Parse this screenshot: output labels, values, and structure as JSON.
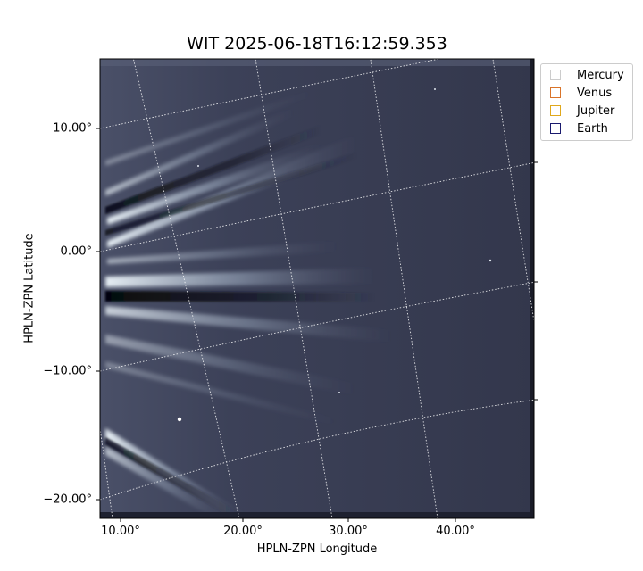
{
  "title": "WIT 2025-06-18T16:12:59.353",
  "xlabel": "HPLN-ZPN Longitude",
  "ylabel": "HPLN-ZPN Latitude",
  "yticks": [
    "10.00°",
    "0.00°",
    "−10.00°",
    "−20.00°"
  ],
  "xticks": [
    "10.00°",
    "20.00°",
    "30.00°",
    "40.00°"
  ],
  "legend": [
    {
      "label": "Mercury",
      "color": "#cccccc"
    },
    {
      "label": "Venus",
      "color": "#d9742a"
    },
    {
      "label": "Jupiter",
      "color": "#e0a81c"
    },
    {
      "label": "Earth",
      "color": "#1a1a6e"
    }
  ],
  "colors": {
    "image_bg": "#363a52",
    "ray": "#c8d6e2",
    "dark_band": "#0a0c14",
    "grid": "#ffffff"
  }
}
